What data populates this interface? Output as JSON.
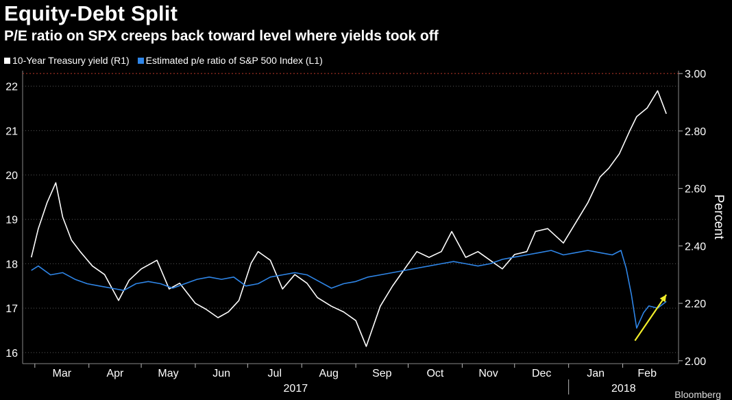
{
  "header": {
    "title": "Equity-Debt Split",
    "subtitle": "P/E ratio on SPX creeps back toward level where yields took off"
  },
  "legend": [
    {
      "label": "10-Year Treasury yield (R1)",
      "color": "#ffffff"
    },
    {
      "label": "Estimated p/e ratio of S&P 500 Index (L1)",
      "color": "#2f86e8"
    }
  ],
  "chart_data": {
    "type": "line",
    "title": "Equity-Debt Split",
    "subtitle": "P/E ratio on SPX creeps back toward level where yields took off",
    "x_months": [
      "Mar",
      "Apr",
      "May",
      "Jun",
      "Jul",
      "Aug",
      "Sep",
      "Oct",
      "Nov",
      "Dec",
      "Jan",
      "Feb"
    ],
    "x_years": [
      "2017",
      "2018"
    ],
    "y_left": {
      "ticks": [
        16,
        17,
        18,
        19,
        20,
        21,
        22
      ],
      "ylim": [
        15.75,
        22.35
      ]
    },
    "y_right": {
      "label": "Percent",
      "ticks": [
        "2.00",
        "2.20",
        "2.40",
        "2.60",
        "2.80",
        "3.00"
      ],
      "ylim": [
        1.99,
        3.01
      ]
    },
    "reference_line": {
      "axis": "right",
      "value": 3.0,
      "color": "#c0392b",
      "style": "dotted"
    },
    "annotation": {
      "type": "arrow",
      "color": "#f2ee2a",
      "from": [
        "2018-02-08",
        2.07
      ],
      "to": [
        "2018-02-26",
        2.23
      ]
    },
    "series": [
      {
        "name": "10-Year Treasury yield (R1)",
        "axis": "right",
        "color": "#ffffff",
        "x": [
          "2017-02-27",
          "2017-03-03",
          "2017-03-08",
          "2017-03-13",
          "2017-03-17",
          "2017-03-22",
          "2017-03-27",
          "2017-04-03",
          "2017-04-10",
          "2017-04-18",
          "2017-04-24",
          "2017-05-01",
          "2017-05-10",
          "2017-05-17",
          "2017-05-23",
          "2017-06-01",
          "2017-06-07",
          "2017-06-14",
          "2017-06-20",
          "2017-06-26",
          "2017-07-03",
          "2017-07-07",
          "2017-07-14",
          "2017-07-21",
          "2017-07-28",
          "2017-08-04",
          "2017-08-10",
          "2017-08-18",
          "2017-08-25",
          "2017-09-01",
          "2017-09-07",
          "2017-09-15",
          "2017-09-22",
          "2017-09-29",
          "2017-10-06",
          "2017-10-13",
          "2017-10-20",
          "2017-10-26",
          "2017-11-03",
          "2017-11-10",
          "2017-11-17",
          "2017-11-24",
          "2017-12-01",
          "2017-12-08",
          "2017-12-13",
          "2017-12-20",
          "2017-12-29",
          "2018-01-05",
          "2018-01-12",
          "2018-01-19",
          "2018-01-24",
          "2018-01-30",
          "2018-02-05",
          "2018-02-09",
          "2018-02-15",
          "2018-02-21",
          "2018-02-26"
        ],
        "values": [
          2.36,
          2.46,
          2.55,
          2.62,
          2.5,
          2.42,
          2.38,
          2.33,
          2.3,
          2.21,
          2.28,
          2.32,
          2.35,
          2.25,
          2.27,
          2.2,
          2.18,
          2.15,
          2.17,
          2.21,
          2.34,
          2.38,
          2.35,
          2.25,
          2.3,
          2.27,
          2.22,
          2.19,
          2.17,
          2.14,
          2.05,
          2.19,
          2.26,
          2.32,
          2.38,
          2.36,
          2.38,
          2.45,
          2.36,
          2.38,
          2.35,
          2.32,
          2.37,
          2.38,
          2.45,
          2.46,
          2.41,
          2.48,
          2.55,
          2.64,
          2.67,
          2.72,
          2.8,
          2.85,
          2.88,
          2.94,
          2.86
        ]
      },
      {
        "name": "Estimated p/e ratio of S&P 500 Index (L1)",
        "axis": "left",
        "color": "#2f86e8",
        "x": [
          "2017-02-27",
          "2017-03-03",
          "2017-03-10",
          "2017-03-17",
          "2017-03-24",
          "2017-03-31",
          "2017-04-07",
          "2017-04-14",
          "2017-04-21",
          "2017-04-28",
          "2017-05-05",
          "2017-05-12",
          "2017-05-19",
          "2017-05-26",
          "2017-06-02",
          "2017-06-09",
          "2017-06-16",
          "2017-06-23",
          "2017-06-30",
          "2017-07-07",
          "2017-07-14",
          "2017-07-21",
          "2017-07-28",
          "2017-08-04",
          "2017-08-11",
          "2017-08-18",
          "2017-08-25",
          "2017-09-01",
          "2017-09-08",
          "2017-09-15",
          "2017-09-22",
          "2017-09-29",
          "2017-10-06",
          "2017-10-13",
          "2017-10-20",
          "2017-10-27",
          "2017-11-03",
          "2017-11-10",
          "2017-11-17",
          "2017-11-24",
          "2017-12-01",
          "2017-12-08",
          "2017-12-15",
          "2017-12-22",
          "2017-12-29",
          "2018-01-05",
          "2018-01-12",
          "2018-01-19",
          "2018-01-26",
          "2018-01-31",
          "2018-02-03",
          "2018-02-06",
          "2018-02-09",
          "2018-02-13",
          "2018-02-16",
          "2018-02-21",
          "2018-02-26"
        ],
        "values": [
          17.85,
          17.95,
          17.75,
          17.8,
          17.65,
          17.55,
          17.5,
          17.45,
          17.4,
          17.55,
          17.6,
          17.55,
          17.45,
          17.55,
          17.65,
          17.7,
          17.65,
          17.7,
          17.5,
          17.55,
          17.7,
          17.75,
          17.8,
          17.75,
          17.6,
          17.45,
          17.55,
          17.6,
          17.7,
          17.75,
          17.8,
          17.85,
          17.9,
          17.95,
          18.0,
          18.05,
          18.0,
          17.95,
          18.0,
          18.1,
          18.15,
          18.2,
          18.25,
          18.3,
          18.2,
          18.25,
          18.3,
          18.25,
          18.2,
          18.3,
          17.9,
          17.3,
          16.55,
          16.9,
          17.05,
          17.0,
          17.15
        ]
      }
    ]
  },
  "footer": {
    "source": "Bloomberg"
  }
}
